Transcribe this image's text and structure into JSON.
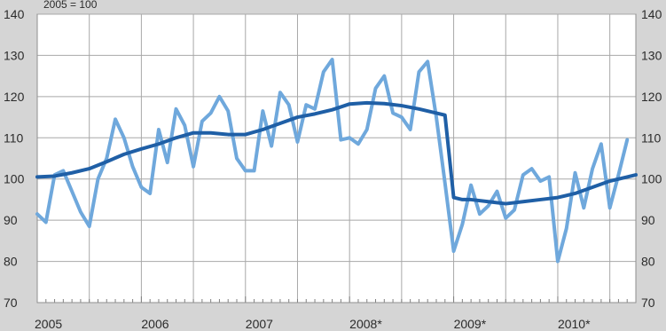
{
  "chart_data": {
    "type": "line",
    "unit_label": "2005 = 100",
    "x_tick_labels": [
      "2005",
      "2006",
      "2007",
      "2008*",
      "2009*",
      "2010*"
    ],
    "y_tick_labels": [
      "70",
      "80",
      "90",
      "100",
      "110",
      "120",
      "130",
      "140"
    ],
    "ylim": [
      70,
      140
    ],
    "y_ticks": [
      70,
      80,
      90,
      100,
      110,
      120,
      130,
      140
    ],
    "x_range_months": [
      0,
      69
    ],
    "grid": true,
    "series": [
      {
        "key": "monthly",
        "color": "#6fa8dc",
        "points": [
          [
            0,
            91.5
          ],
          [
            1,
            89.5
          ],
          [
            2,
            101
          ],
          [
            3,
            102
          ],
          [
            4,
            97
          ],
          [
            5,
            92
          ],
          [
            6,
            88.5
          ],
          [
            7,
            100
          ],
          [
            8,
            105
          ],
          [
            9,
            114.5
          ],
          [
            10,
            110
          ],
          [
            11,
            103
          ],
          [
            12,
            98
          ],
          [
            13,
            96.5
          ],
          [
            14,
            112
          ],
          [
            15,
            104
          ],
          [
            16,
            117
          ],
          [
            17,
            113
          ],
          [
            18,
            103
          ],
          [
            19,
            114
          ],
          [
            20,
            116
          ],
          [
            21,
            120
          ],
          [
            22,
            116.5
          ],
          [
            23,
            105
          ],
          [
            24,
            102
          ],
          [
            25,
            102
          ],
          [
            26,
            116.5
          ],
          [
            27,
            108
          ],
          [
            28,
            121
          ],
          [
            29,
            118
          ],
          [
            30,
            109
          ],
          [
            31,
            118
          ],
          [
            32,
            117
          ],
          [
            33,
            126
          ],
          [
            34,
            129
          ],
          [
            35,
            109.5
          ],
          [
            36,
            110
          ],
          [
            37,
            108.5
          ],
          [
            38,
            112
          ],
          [
            39,
            122
          ],
          [
            40,
            125
          ],
          [
            41,
            116
          ],
          [
            42,
            115
          ],
          [
            43,
            112
          ],
          [
            44,
            126
          ],
          [
            45,
            128.5
          ],
          [
            46,
            115
          ],
          [
            47,
            99
          ],
          [
            48,
            82.5
          ],
          [
            49,
            89
          ],
          [
            50,
            98.5
          ],
          [
            51,
            91.5
          ],
          [
            52,
            93.5
          ],
          [
            53,
            97
          ],
          [
            54,
            90.5
          ],
          [
            55,
            92.5
          ],
          [
            56,
            101
          ],
          [
            57,
            102.5
          ],
          [
            58,
            99.5
          ],
          [
            59,
            100.5
          ],
          [
            60,
            80
          ],
          [
            61,
            88
          ],
          [
            62,
            101.5
          ],
          [
            63,
            93
          ],
          [
            64,
            102.5
          ],
          [
            65,
            108.5
          ],
          [
            66,
            93
          ],
          [
            67,
            101
          ],
          [
            68,
            109.5
          ]
        ]
      },
      {
        "key": "trend",
        "color": "#1f5fa6",
        "points": [
          [
            0,
            100.5
          ],
          [
            2,
            100.7
          ],
          [
            4,
            101.5
          ],
          [
            6,
            102.5
          ],
          [
            8,
            104.2
          ],
          [
            10,
            106
          ],
          [
            12,
            107.3
          ],
          [
            14,
            108.5
          ],
          [
            16,
            110
          ],
          [
            18,
            111.2
          ],
          [
            20,
            111.2
          ],
          [
            22,
            110.8
          ],
          [
            24,
            110.8
          ],
          [
            26,
            112
          ],
          [
            28,
            113.5
          ],
          [
            30,
            115
          ],
          [
            32,
            115.8
          ],
          [
            34,
            116.8
          ],
          [
            36,
            118.2
          ],
          [
            38,
            118.5
          ],
          [
            40,
            118.3
          ],
          [
            42,
            117.8
          ],
          [
            44,
            117
          ],
          [
            46,
            116
          ],
          [
            47,
            115.5
          ],
          [
            48,
            95.5
          ],
          [
            49,
            95
          ],
          [
            50,
            95
          ],
          [
            52,
            94.5
          ],
          [
            54,
            94
          ],
          [
            56,
            94.5
          ],
          [
            58,
            95
          ],
          [
            60,
            95.5
          ],
          [
            62,
            96.5
          ],
          [
            64,
            98
          ],
          [
            66,
            99.5
          ],
          [
            68,
            100.5
          ],
          [
            69,
            101
          ]
        ]
      }
    ]
  }
}
